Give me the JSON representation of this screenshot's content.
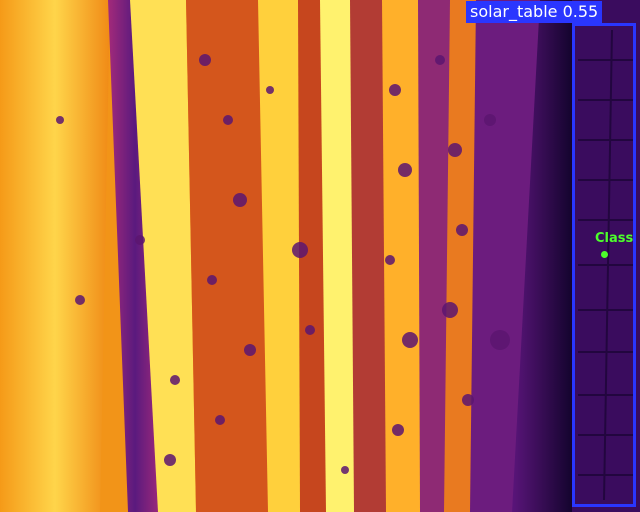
{
  "detection": {
    "label": "solar_table 0.55",
    "class_name": "solar_table",
    "confidence": 0.55,
    "box_color": "#2a36ff"
  },
  "keypoint": {
    "label": "Class",
    "color": "#4cff2b"
  },
  "palette": {
    "hot": "#fff06a",
    "warm": "#ff9a1a",
    "cool": "#7a1f7e",
    "cold": "#1a0433"
  }
}
